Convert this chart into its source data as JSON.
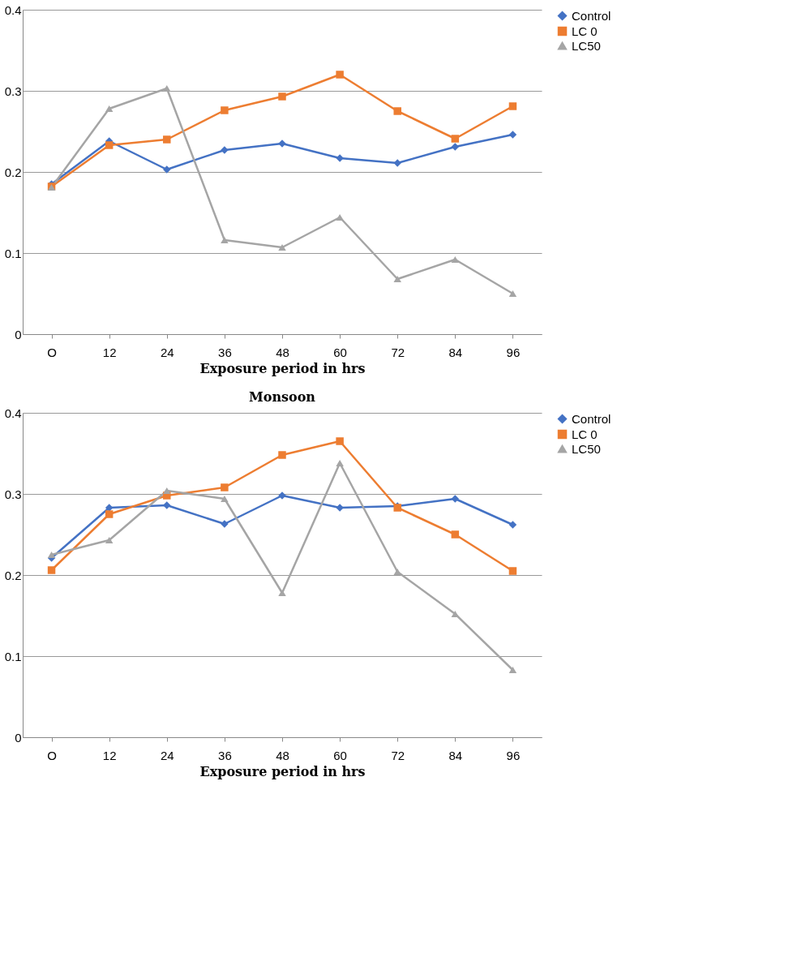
{
  "chart_data": [
    {
      "type": "line",
      "xlabel": "Exposure period in hrs",
      "categories": [
        "O",
        "12",
        "24",
        "36",
        "48",
        "60",
        "72",
        "84",
        "96"
      ],
      "series": [
        {
          "name": "Control",
          "color": "#4472c4",
          "marker": "diamond",
          "values": [
            0.185,
            0.238,
            0.203,
            0.227,
            0.235,
            0.217,
            0.211,
            0.231,
            0.246
          ]
        },
        {
          "name": "LC 0",
          "color": "#ed7d31",
          "marker": "square",
          "values": [
            0.182,
            0.233,
            0.24,
            0.276,
            0.293,
            0.32,
            0.275,
            0.241,
            0.281
          ]
        },
        {
          "name": "LC50",
          "color": "#a5a5a5",
          "marker": "triangle",
          "values": [
            0.181,
            0.278,
            0.303,
            0.116,
            0.107,
            0.144,
            0.068,
            0.092,
            0.05
          ]
        }
      ],
      "ylim": [
        0,
        0.4
      ],
      "yticks": [
        0,
        0.1,
        0.2,
        0.3,
        0.4
      ],
      "grid": "y",
      "legend": "right"
    },
    {
      "type": "line",
      "title": "Monsoon",
      "xlabel": "Exposure period in hrs",
      "categories": [
        "O",
        "12",
        "24",
        "36",
        "48",
        "60",
        "72",
        "84",
        "96"
      ],
      "series": [
        {
          "name": "Control",
          "color": "#4472c4",
          "marker": "diamond",
          "values": [
            0.221,
            0.283,
            0.286,
            0.263,
            0.298,
            0.283,
            0.285,
            0.294,
            0.262
          ]
        },
        {
          "name": "LC 0",
          "color": "#ed7d31",
          "marker": "square",
          "values": [
            0.206,
            0.275,
            0.298,
            0.308,
            0.348,
            0.365,
            0.283,
            0.25,
            0.205
          ]
        },
        {
          "name": "LC50",
          "color": "#a5a5a5",
          "marker": "triangle",
          "values": [
            0.225,
            0.243,
            0.304,
            0.294,
            0.178,
            0.338,
            0.204,
            0.152,
            0.083
          ]
        }
      ],
      "ylim": [
        0,
        0.4
      ],
      "yticks": [
        0,
        0.1,
        0.2,
        0.3,
        0.4
      ],
      "grid": "y",
      "legend": "right"
    }
  ]
}
